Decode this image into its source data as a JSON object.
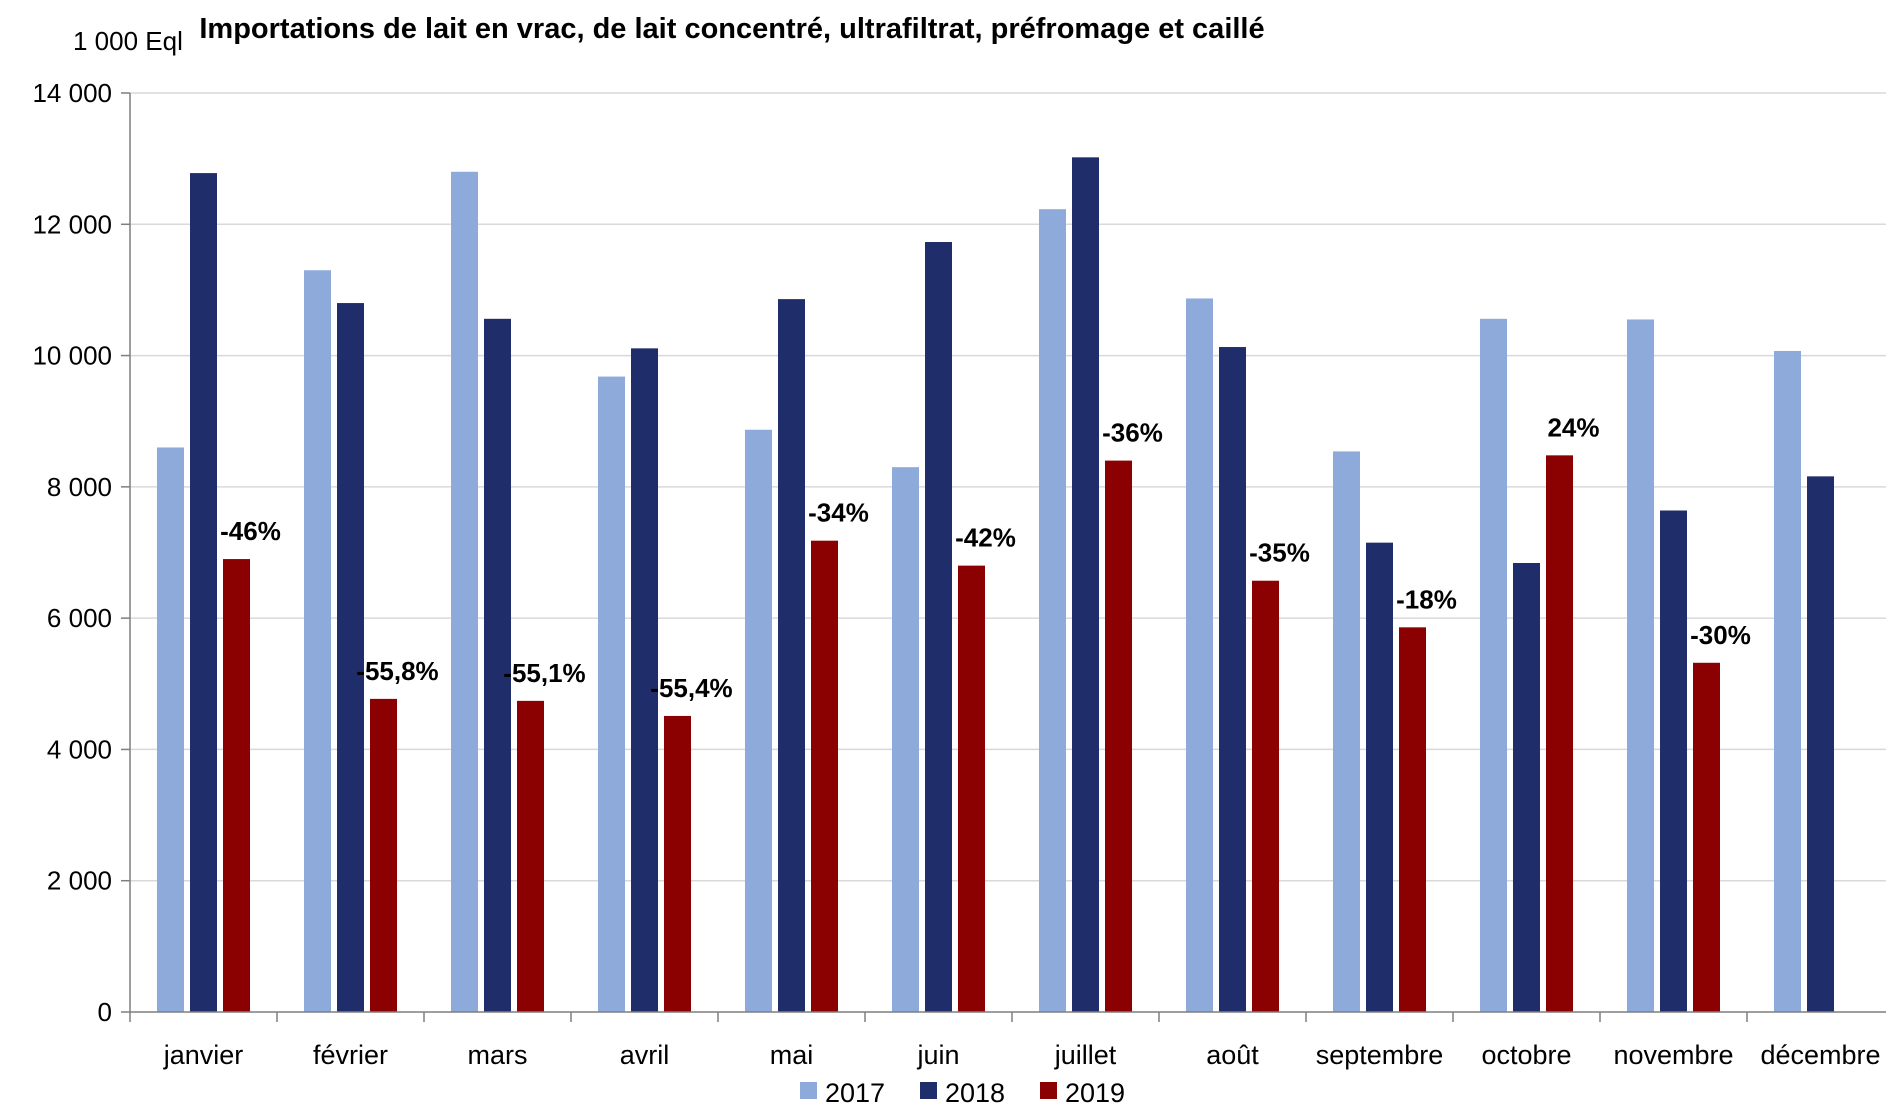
{
  "chart_data": {
    "type": "bar",
    "title": "Importations de lait en vrac, de lait concentré, ultrafiltrat, préfromage et caillé",
    "ylabel": "1 000 Eql",
    "xlabel": "",
    "ylim": [
      0,
      14000
    ],
    "yticks": [
      0,
      2000,
      4000,
      6000,
      8000,
      10000,
      12000,
      14000
    ],
    "ytick_labels": [
      "0",
      "2 000",
      "4 000",
      "6 000",
      "8 000",
      "10 000",
      "12 000",
      "14 000"
    ],
    "grid": true,
    "legend_position": "bottom",
    "categories": [
      "janvier",
      "février",
      "mars",
      "avril",
      "mai",
      "juin",
      "juillet",
      "août",
      "septembre",
      "octobre",
      "novembre",
      "décembre"
    ],
    "series": [
      {
        "name": "2017",
        "color": "#8EAADB",
        "values": [
          8600,
          11300,
          12800,
          9680,
          8870,
          8300,
          12230,
          10870,
          8540,
          10560,
          10550,
          10070
        ]
      },
      {
        "name": "2018",
        "color": "#1F2D6B",
        "values": [
          12780,
          10800,
          10560,
          10110,
          10860,
          11730,
          13020,
          10130,
          7150,
          6840,
          7640,
          8160
        ]
      },
      {
        "name": "2019",
        "color": "#8B0000",
        "values": [
          6900,
          4770,
          4740,
          4510,
          7180,
          6800,
          8400,
          6570,
          5860,
          8480,
          5320,
          null
        ]
      }
    ],
    "annotations": [
      {
        "category": "janvier",
        "series": "2019",
        "text": "-46%"
      },
      {
        "category": "février",
        "series": "2019",
        "text": "-55,8%"
      },
      {
        "category": "mars",
        "series": "2019",
        "text": "-55,1%"
      },
      {
        "category": "avril",
        "series": "2019",
        "text": "-55,4%"
      },
      {
        "category": "mai",
        "series": "2019",
        "text": "-34%"
      },
      {
        "category": "juin",
        "series": "2019",
        "text": "-42%"
      },
      {
        "category": "juillet",
        "series": "2019",
        "text": "-36%"
      },
      {
        "category": "août",
        "series": "2019",
        "text": "-35%"
      },
      {
        "category": "septembre",
        "series": "2019",
        "text": "-18%"
      },
      {
        "category": "octobre",
        "series": "2019",
        "text": "24%"
      },
      {
        "category": "novembre",
        "series": "2019",
        "text": "-30%"
      }
    ]
  }
}
